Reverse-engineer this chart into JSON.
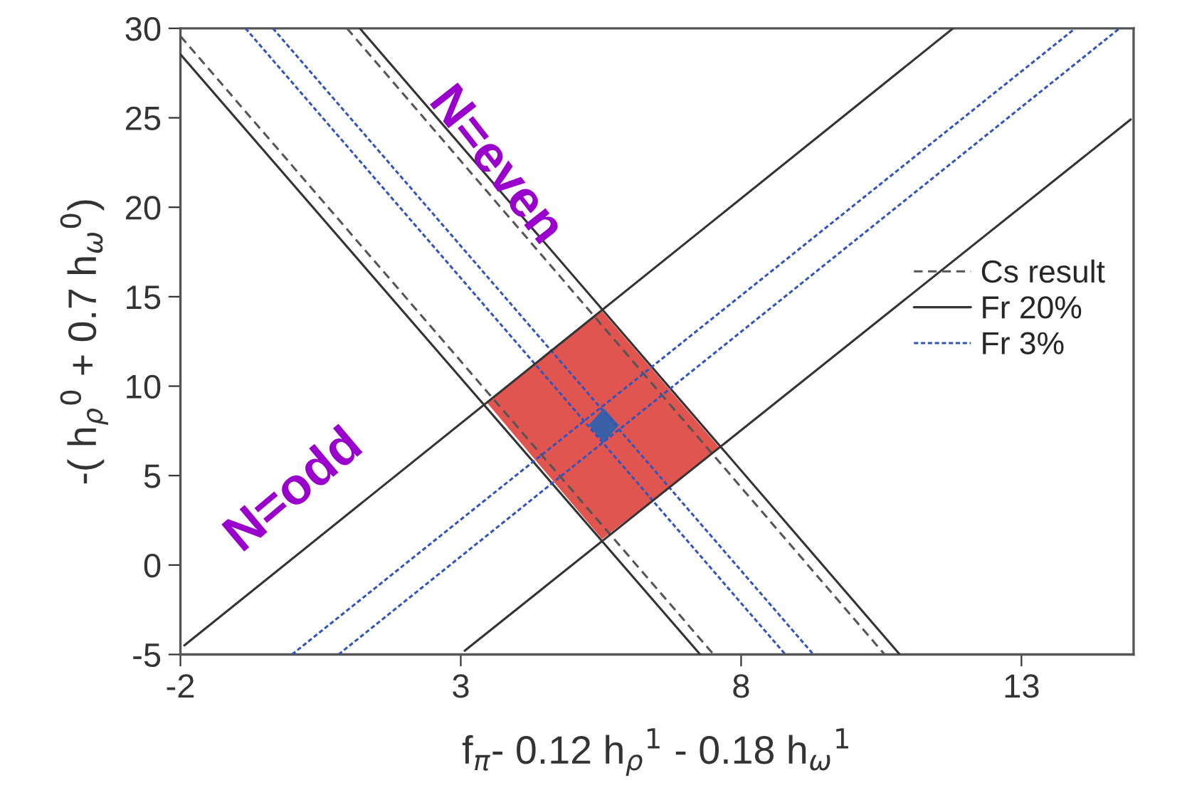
{
  "chart_data": {
    "type": "line",
    "xlabel": "f$_{π}$- 0.12 h$_{ρ}$$^{1}$ - 0.18 h$_{ω}$$^{1}$",
    "ylabel": "-( h$_{ρ}$$^{0}$ + 0.7 h$_{ω}$$^{0}$)",
    "xlim": [
      -2,
      15
    ],
    "ylim": [
      -5,
      30
    ],
    "xticks": [
      -2,
      3,
      8,
      13
    ],
    "yticks": [
      -5,
      0,
      5,
      10,
      15,
      20,
      25,
      30
    ],
    "grid": false,
    "legend": "right",
    "marker": "none",
    "annotations": [
      "N=even",
      "N=odd"
    ],
    "series": [
      {
        "type": "area",
        "color": "#e05550",
        "x": [
          3.46,
          5.52,
          7.62,
          5.52
        ],
        "values": [
          9.1,
          14.19,
          6.54,
          1.45
        ]
      },
      {
        "type": "area",
        "color": "#3a60a8",
        "x": [
          5.28,
          5.55,
          5.82,
          5.55
        ],
        "values": [
          7.82,
          8.76,
          7.82,
          6.84
        ]
      },
      {
        "name": "Cs result",
        "color": "#555555",
        "line_style": "dashed",
        "x": [
          -2,
          7.51
        ],
        "values": [
          29.57,
          -5
        ]
      },
      {
        "name": "Fr 20%",
        "color": "#333333",
        "line_style": "solid",
        "x": [
          -2,
          7.27
        ],
        "values": [
          28.55,
          -5
        ]
      },
      {
        "name": "Fr 3%",
        "color": "#3355bb",
        "line_style": "dotted",
        "x": [
          -0.84,
          8.79
        ],
        "values": [
          30,
          -5
        ]
      },
      {
        "color": "#3355bb",
        "line_style": "dotted",
        "x": [
          -0.35,
          9.29
        ],
        "values": [
          30,
          -5
        ]
      },
      {
        "color": "#555555",
        "line_style": "dashed",
        "x": [
          0.97,
          10.56
        ],
        "values": [
          30,
          -5
        ]
      },
      {
        "color": "#333333",
        "line_style": "solid",
        "x": [
          1.2,
          10.83
        ],
        "values": [
          30,
          -5
        ]
      },
      {
        "color": "#333333",
        "line_style": "solid",
        "x": [
          -1.93,
          11.78
        ],
        "values": [
          -4.49,
          30
        ]
      },
      {
        "color": "#3355bb",
        "line_style": "dotted",
        "x": [
          -0.01,
          13.96
        ],
        "values": [
          -5,
          30
        ]
      },
      {
        "color": "#3355bb",
        "line_style": "dotted",
        "x": [
          0.82,
          14.75
        ],
        "values": [
          -5,
          30
        ]
      },
      {
        "color": "#333333",
        "line_style": "solid",
        "x": [
          3.07,
          14.95
        ],
        "values": [
          -4.79,
          24.91
        ]
      }
    ]
  }
}
